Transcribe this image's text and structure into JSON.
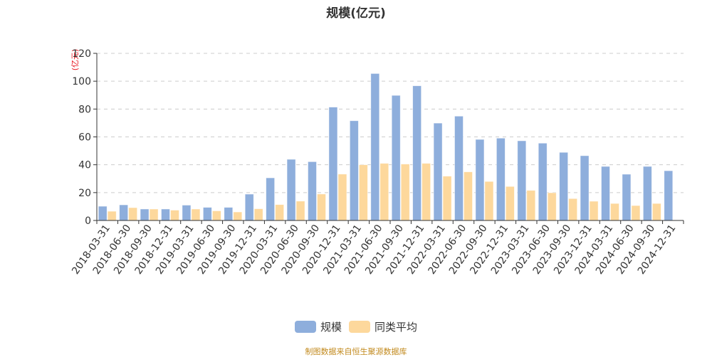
{
  "title": "规模(亿元)",
  "unit_label": "(亿元)",
  "legend": [
    {
      "label": "规模",
      "color": "#8eaedc"
    },
    {
      "label": "同类平均",
      "color": "#fdd89c"
    }
  ],
  "source": "制图数据来自恒生聚源数据库",
  "chart_data": {
    "type": "bar",
    "title": "规模(亿元)",
    "xlabel": "",
    "ylabel": "(亿元)",
    "ylim": [
      0,
      120
    ],
    "yticks": [
      0,
      20,
      40,
      60,
      80,
      100,
      120
    ],
    "grid": true,
    "legend_position": "bottom",
    "categories": [
      "2018-03-31",
      "2018-06-30",
      "2018-09-30",
      "2018-12-31",
      "2019-03-31",
      "2019-06-30",
      "2019-09-30",
      "2019-12-31",
      "2020-03-31",
      "2020-06-30",
      "2020-09-30",
      "2020-12-31",
      "2021-03-31",
      "2021-06-30",
      "2021-09-30",
      "2021-12-31",
      "2022-03-31",
      "2022-06-30",
      "2022-09-30",
      "2022-12-31",
      "2023-03-31",
      "2023-06-30",
      "2023-09-30",
      "2023-12-31",
      "2024-03-31",
      "2024-06-30",
      "2024-09-30",
      "2024-12-31"
    ],
    "series": [
      {
        "name": "规模",
        "color": "#8eaedc",
        "values": [
          10.2,
          11.2,
          8.2,
          8.2,
          11.0,
          9.4,
          9.4,
          18.9,
          30.6,
          43.9,
          42.2,
          81.4,
          71.6,
          105.5,
          89.8,
          96.7,
          69.9,
          74.9,
          58.2,
          59.1,
          57.2,
          55.5,
          48.9,
          46.5,
          38.8,
          33.2,
          38.8,
          35.7
        ]
      },
      {
        "name": "同类平均",
        "color": "#fdd89c",
        "values": [
          6.6,
          9.2,
          8.2,
          7.4,
          8.2,
          6.9,
          6.1,
          8.4,
          11.4,
          13.9,
          19.0,
          33.3,
          40.0,
          41.0,
          40.5,
          41.0,
          31.8,
          34.9,
          28.0,
          24.4,
          21.6,
          19.9,
          15.7,
          13.8,
          12.2,
          10.7,
          12.2,
          null
        ]
      }
    ]
  }
}
